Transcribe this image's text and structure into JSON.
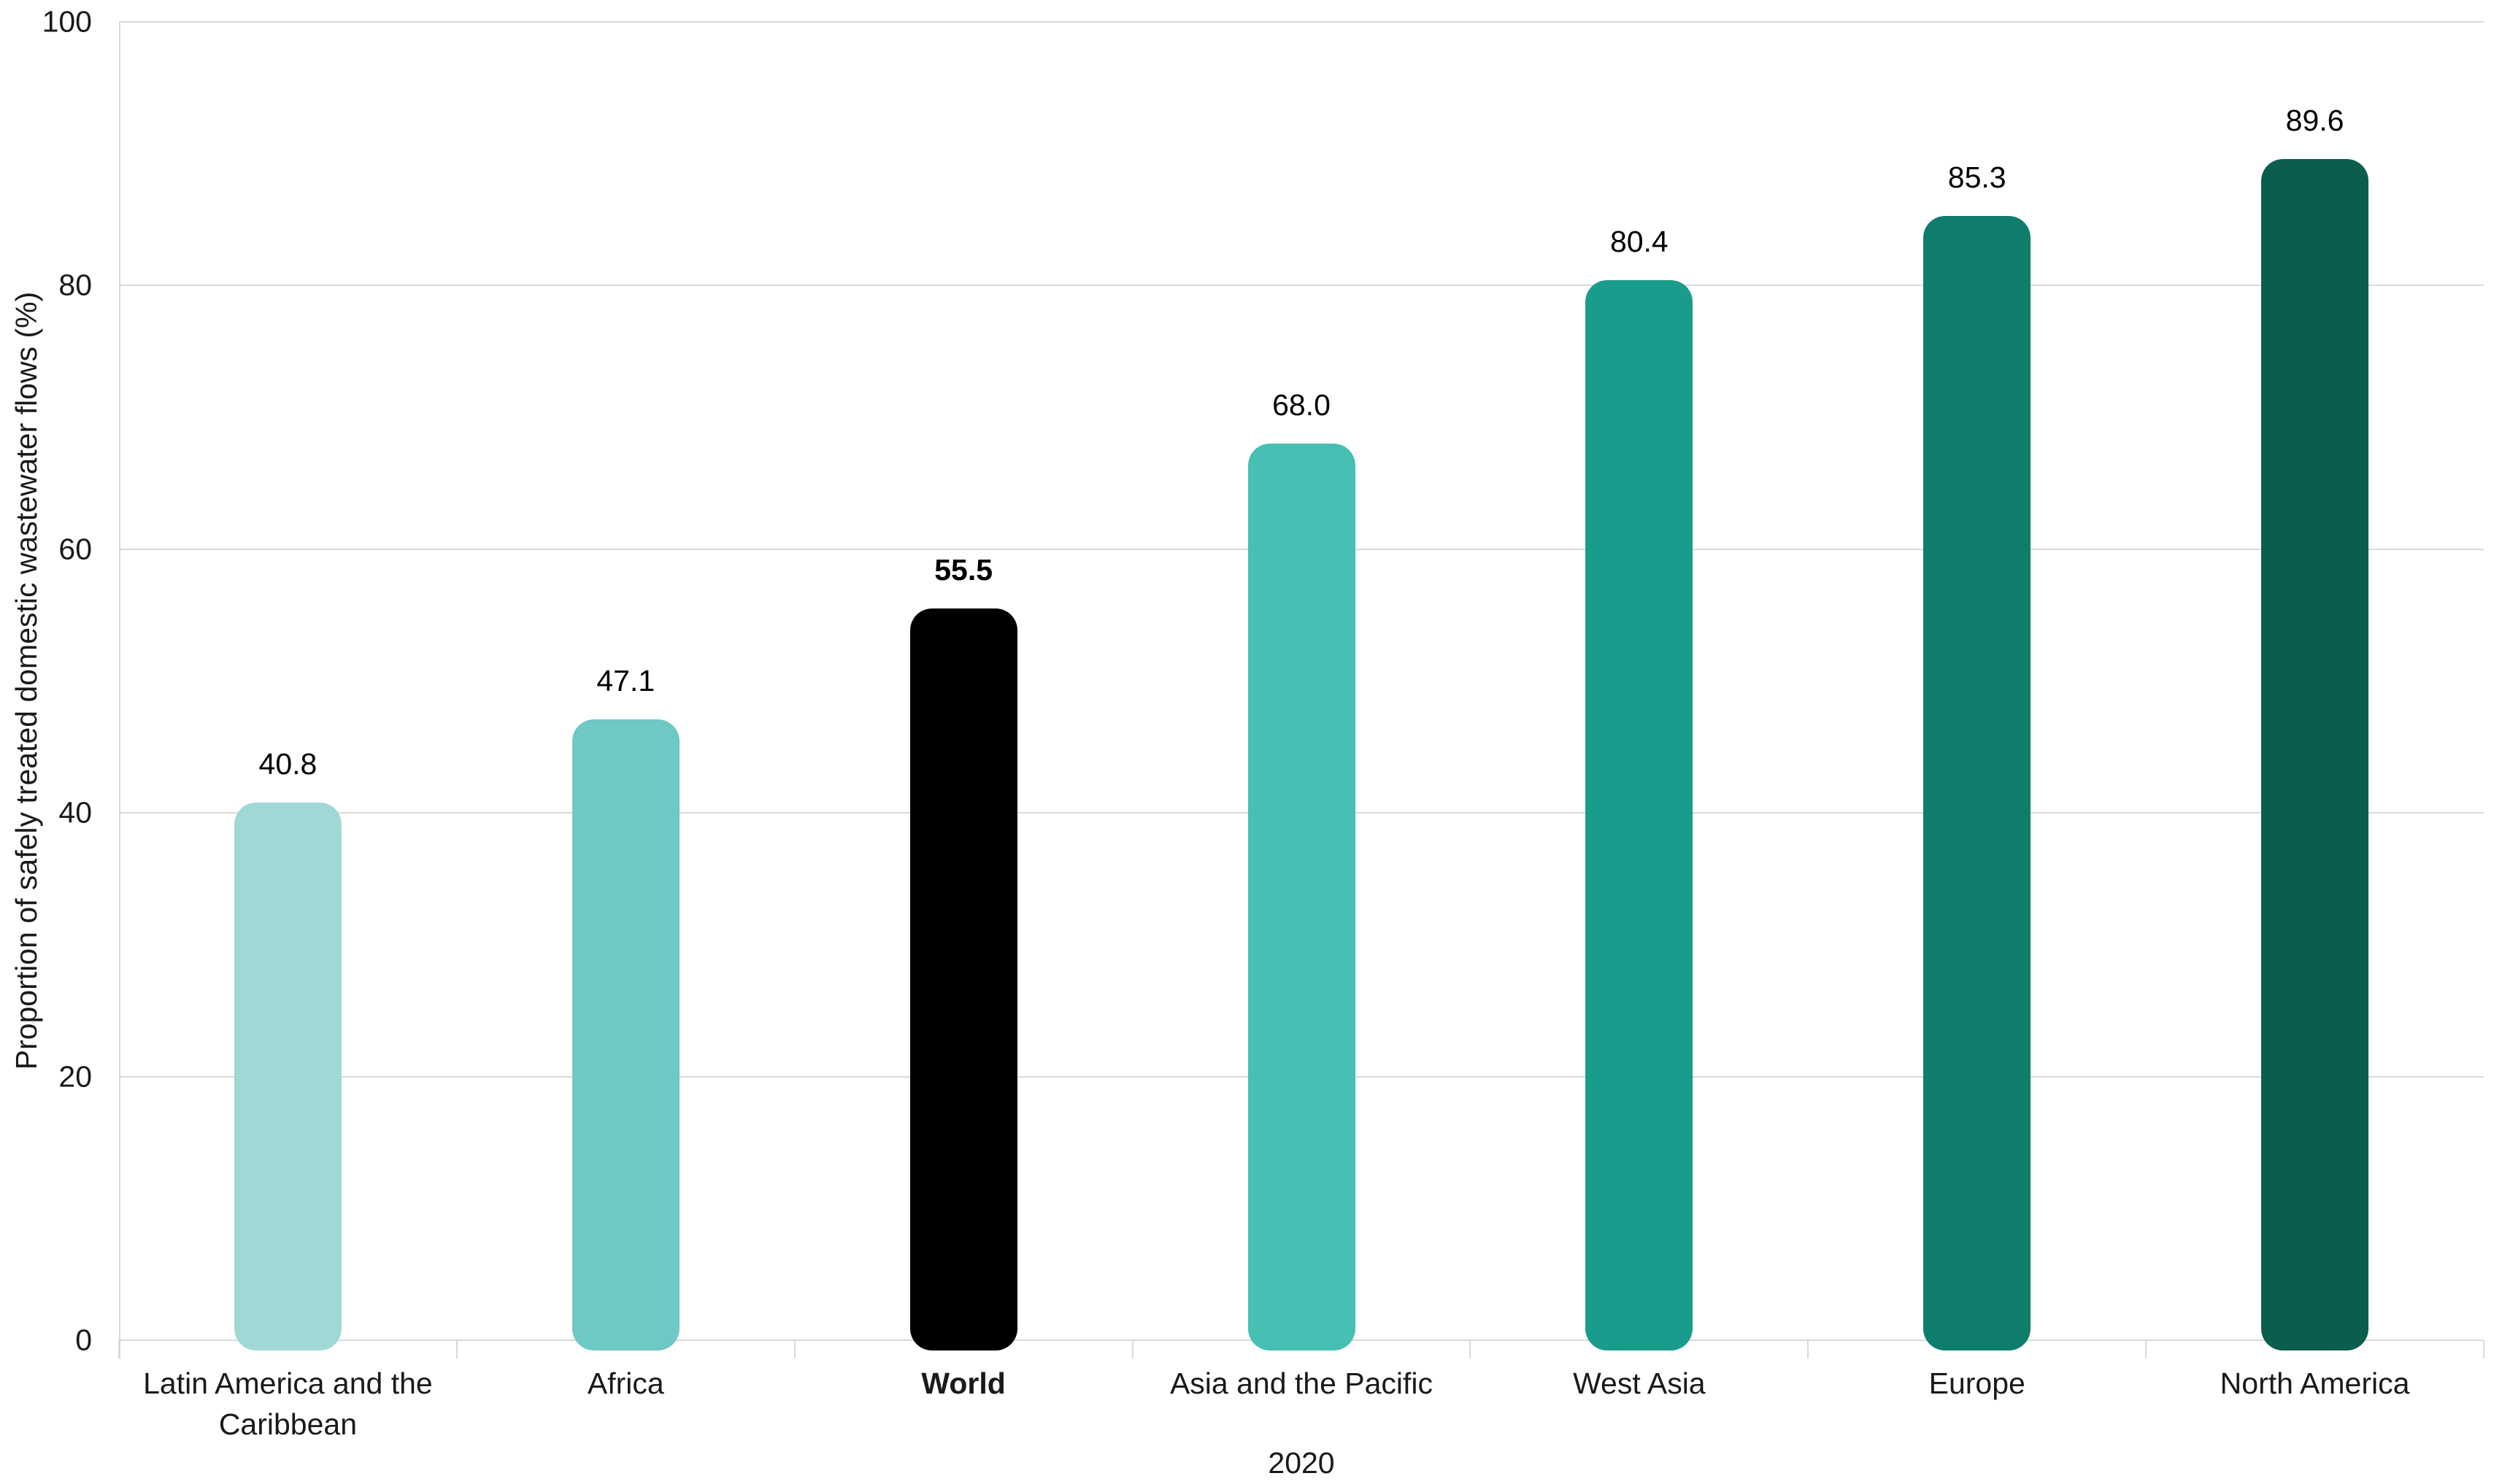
{
  "chart_data": {
    "type": "bar",
    "title": "",
    "xlabel": "2020",
    "ylabel": "Proportion of safely treated domestic wastewater flows (%)",
    "categories": [
      "Latin America and the Caribbean",
      "Africa",
      "World",
      "Asia and the Pacific",
      "West Asia",
      "Europe",
      "North America"
    ],
    "values": [
      40.8,
      47.1,
      55.5,
      68.0,
      80.4,
      85.3,
      89.6
    ],
    "value_labels": [
      "40.8",
      "47.1",
      "55.5",
      "68.0",
      "80.4",
      "85.3",
      "89.6"
    ],
    "bar_colors": [
      "#a1d8d5",
      "#6ec8c3",
      "#000000",
      "#47bfb2",
      "#1a9c8c",
      "#0f7d6c",
      "#0b5d4e"
    ],
    "emphasis_index": 2,
    "ylim": [
      0,
      100
    ],
    "yticks": [
      0,
      20,
      40,
      60,
      80,
      100
    ],
    "grid": "horizontal",
    "legend": "none"
  },
  "style_colors": {
    "gridline": "#d9d9d9",
    "axis_line": "#d9d9d9",
    "text": "#1a1a1a",
    "background": "#ffffff"
  }
}
